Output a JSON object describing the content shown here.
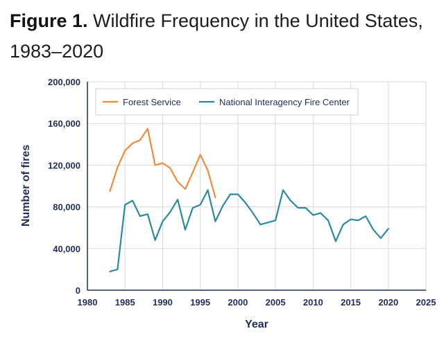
{
  "figure": {
    "label": "Figure 1.",
    "title": "Wildfire Frequency in the United States, 1983–2020"
  },
  "colors": {
    "forest_service": "#f28a3c",
    "nifc": "#2a8a9c",
    "axis": "#1f2d5a",
    "grid": "#d9d9d9"
  },
  "chart_data": {
    "type": "line",
    "xlabel": "Year",
    "ylabel": "Number of fires",
    "xlim": [
      1980,
      2025
    ],
    "ylim": [
      0,
      200000
    ],
    "x_ticks": [
      1980,
      1985,
      1990,
      1995,
      2000,
      2005,
      2010,
      2015,
      2020,
      2025
    ],
    "y_ticks": [
      0,
      40000,
      80000,
      120000,
      160000,
      200000
    ],
    "y_tick_labels": [
      "0",
      "40,000",
      "80,000",
      "120,000",
      "160,000",
      "200,000"
    ],
    "grid": true,
    "legend_position": "top-left",
    "series": [
      {
        "name": "Forest Service",
        "x": [
          1983,
          1984,
          1985,
          1986,
          1987,
          1988,
          1989,
          1990,
          1991,
          1992,
          1993,
          1994,
          1995,
          1996,
          1997
        ],
        "y": [
          95000,
          118000,
          134000,
          141000,
          144000,
          155000,
          120000,
          122000,
          117000,
          104000,
          97000,
          113000,
          130000,
          115000,
          89000
        ]
      },
      {
        "name": "National Interagency Fire Center",
        "x": [
          1983,
          1984,
          1985,
          1986,
          1987,
          1988,
          1989,
          1990,
          1991,
          1992,
          1993,
          1994,
          1995,
          1996,
          1997,
          1998,
          1999,
          2000,
          2001,
          2002,
          2003,
          2004,
          2005,
          2006,
          2007,
          2008,
          2009,
          2010,
          2011,
          2012,
          2013,
          2014,
          2015,
          2016,
          2017,
          2018,
          2019,
          2020
        ],
        "y": [
          18000,
          20000,
          82000,
          86000,
          71000,
          73000,
          48000,
          66000,
          75000,
          87000,
          58000,
          79000,
          82000,
          96000,
          66000,
          81000,
          92000,
          92000,
          84000,
          74000,
          63000,
          65000,
          67000,
          96000,
          86000,
          79000,
          79000,
          72000,
          74000,
          67000,
          47000,
          63000,
          68000,
          67000,
          71000,
          58000,
          50000,
          59000
        ]
      }
    ]
  }
}
